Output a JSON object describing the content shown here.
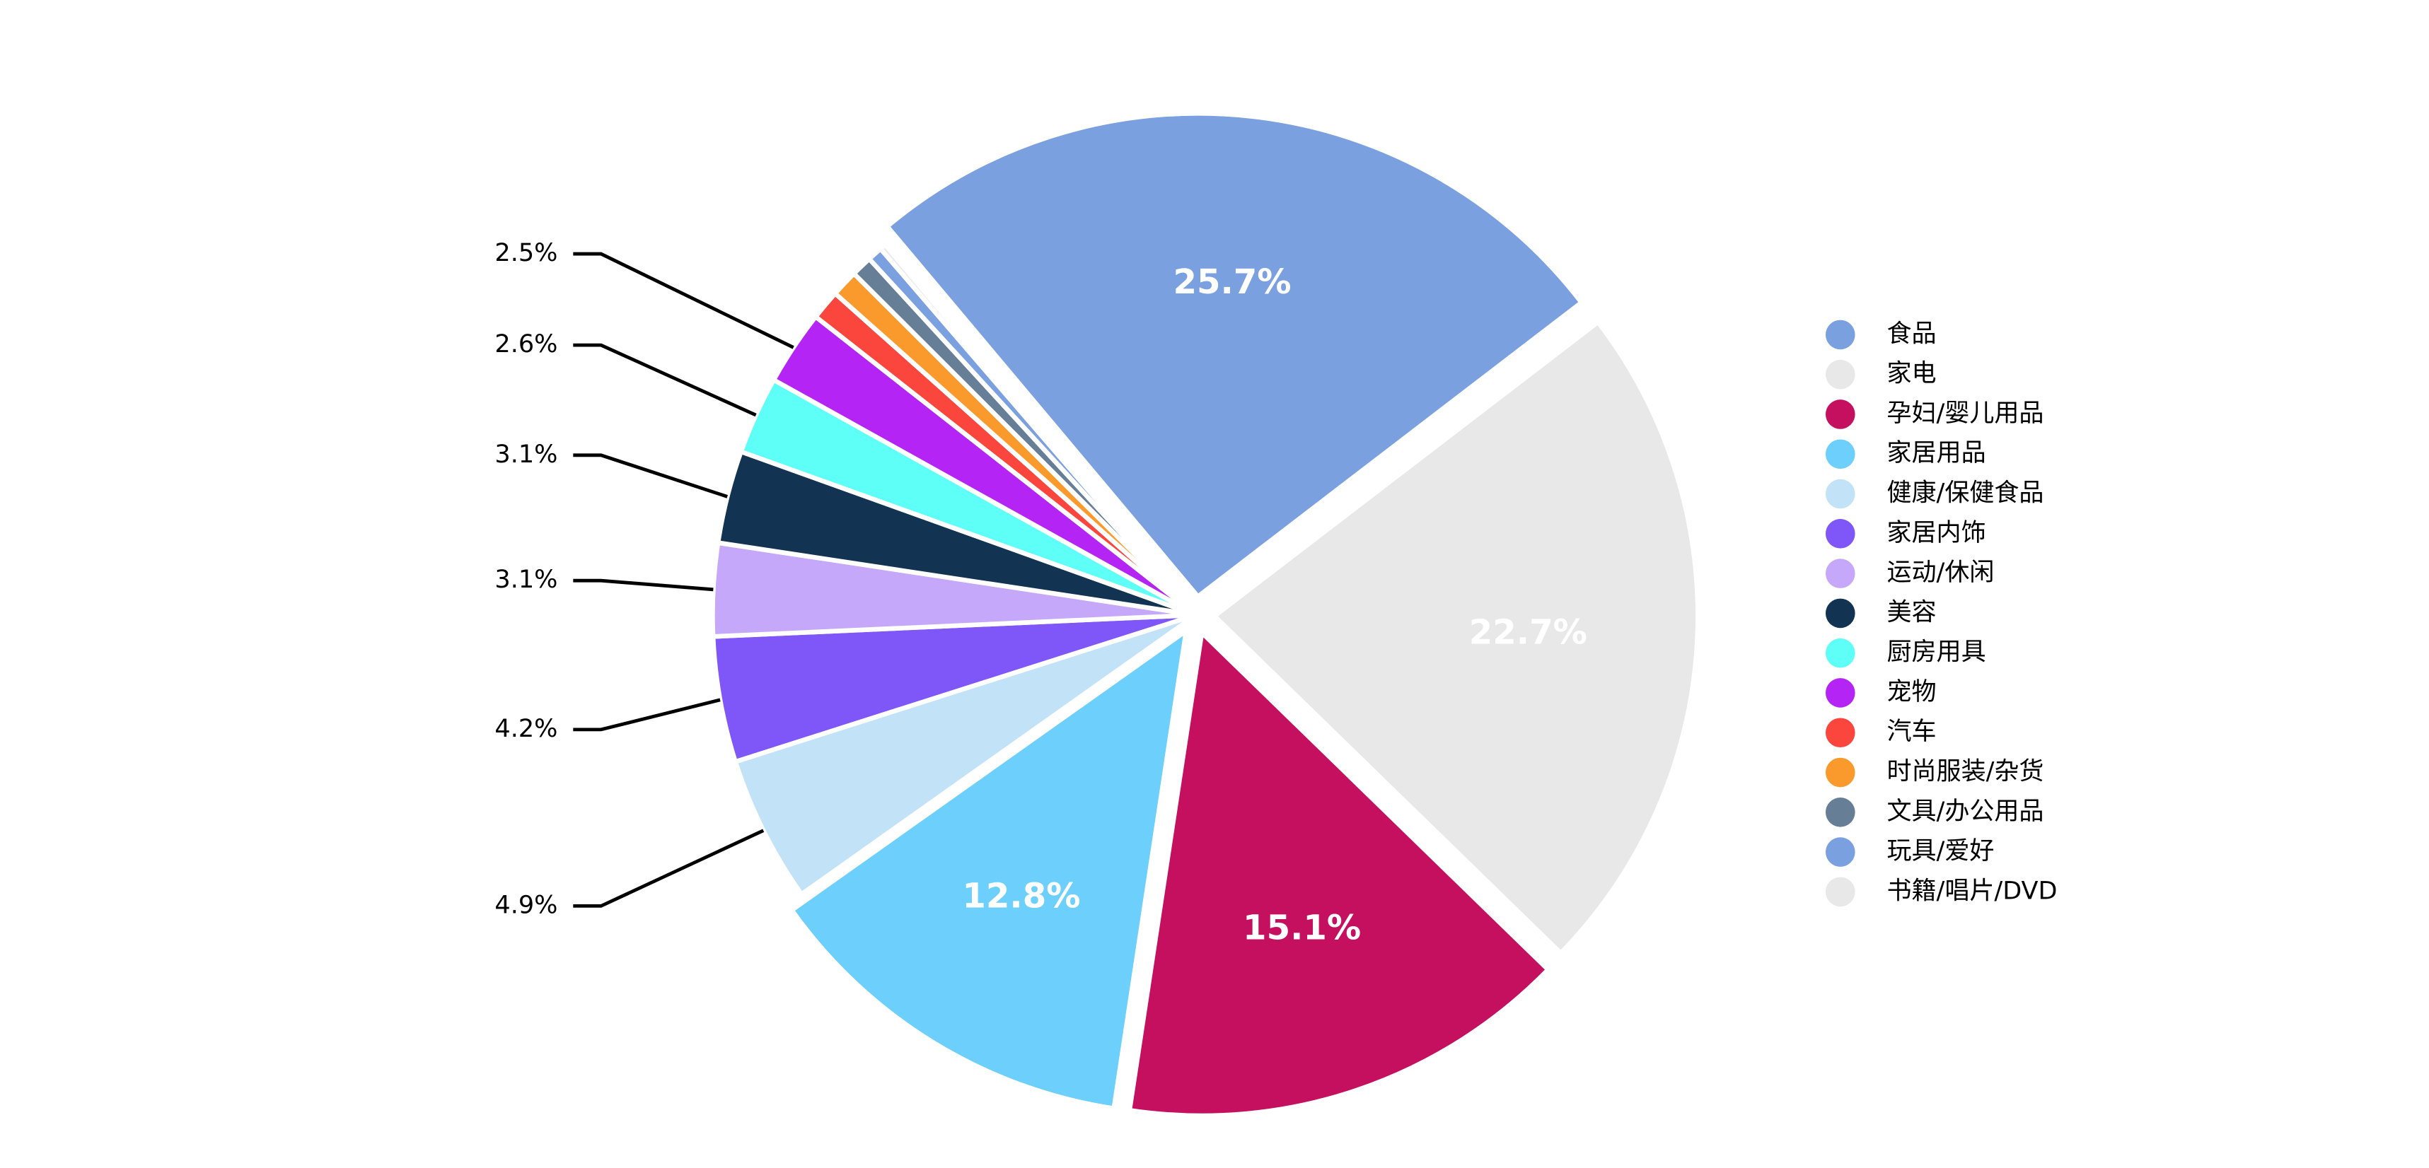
{
  "chart_data": {
    "type": "pie",
    "categories": [
      "食品",
      "家电",
      "孕妇/婴儿用品",
      "家居用品",
      "健康/保健食品",
      "家居内饰",
      "运动/休闲",
      "美容",
      "厨房用具",
      "宠物",
      "汽车",
      "时尚服装/杂货",
      "文具/办公用品",
      "玩具/爱好",
      "书籍/唱片/DVD"
    ],
    "values": [
      25.7,
      22.7,
      15.1,
      12.8,
      4.9,
      4.2,
      3.1,
      3.1,
      2.6,
      2.5,
      1.0,
      0.9,
      0.7,
      0.5,
      0.2
    ],
    "value_labels": [
      "25.7%",
      "22.7%",
      "15.1%",
      "12.8%",
      "4.9%",
      "4.2%",
      "3.1%",
      "3.1%",
      "2.6%",
      "2.5%",
      null,
      null,
      null,
      null,
      null
    ],
    "colors": [
      "#7aa0e0",
      "#e8e8e8",
      "#c4105e",
      "#6dcffb",
      "#c2e3f7",
      "#7f56f7",
      "#c6a8fb",
      "#123452",
      "#5efff6",
      "#b324f5",
      "#fb463e",
      "#fb9a2c",
      "#667f97",
      "#7aa0e0",
      "#e8e8e8"
    ],
    "legend": "right"
  }
}
